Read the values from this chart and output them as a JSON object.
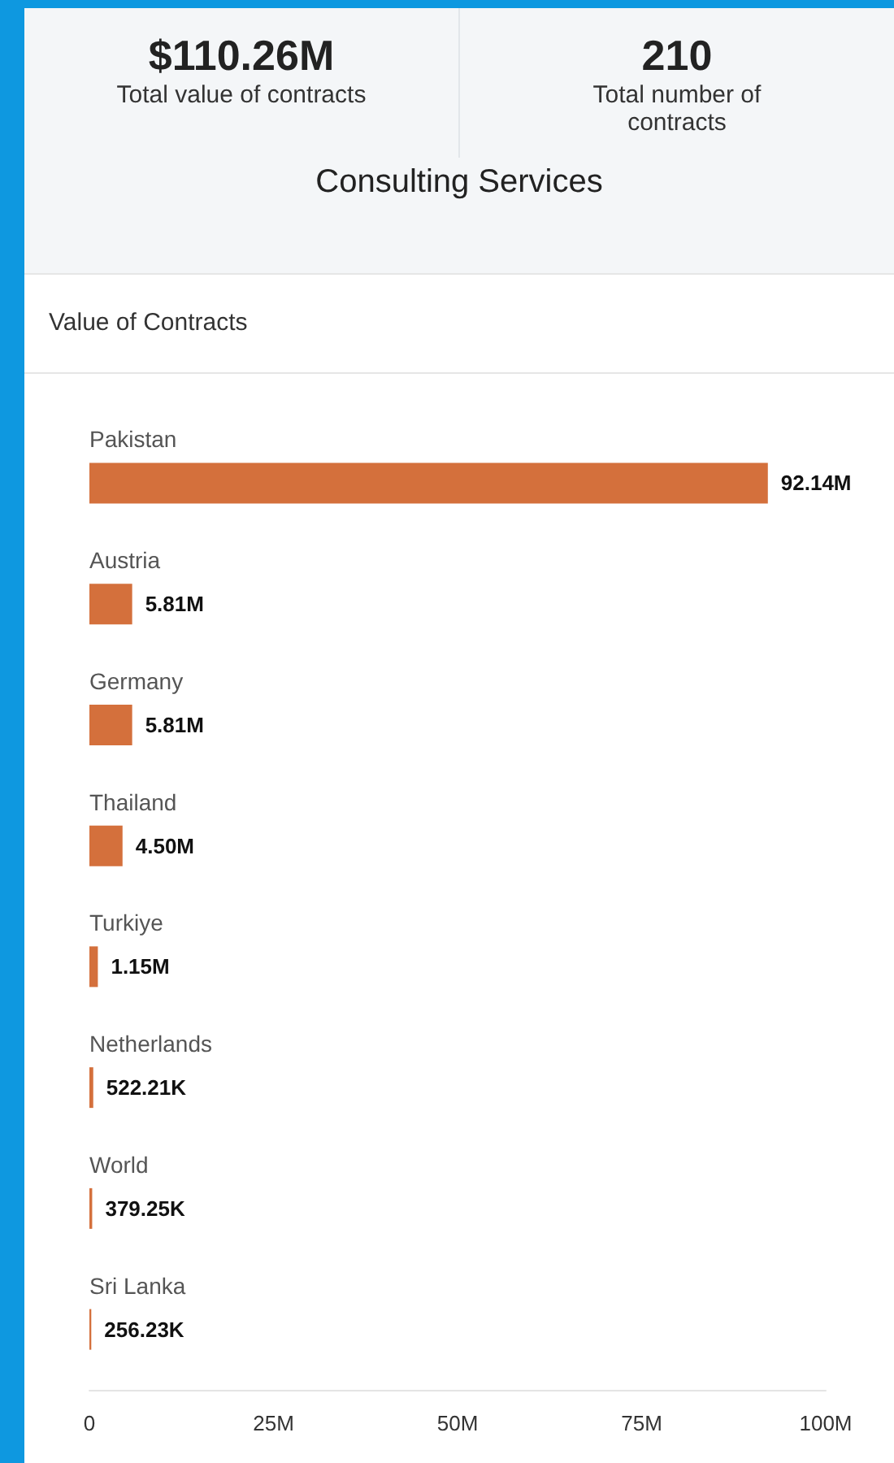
{
  "chart_data": {
    "type": "bar",
    "orientation": "horizontal",
    "title": "Consulting Services",
    "subtitle": "Value of Contracts",
    "annotations": [
      "$110.26M",
      "Total value of contracts",
      "210",
      "Total number of contracts"
    ],
    "categories": [
      "Pakistan",
      "Austria",
      "Germany",
      "Thailand",
      "Turkiye",
      "Netherlands",
      "World",
      "Sri Lanka"
    ],
    "values": [
      92140000,
      5810000,
      5810000,
      4500000,
      1150000,
      522210,
      379250,
      256230
    ],
    "value_labels": [
      "92.14M",
      "5.81M",
      "5.81M",
      "4.50M",
      "1.15M",
      "522.21K",
      "379.25K",
      "256.23K"
    ],
    "color": "#d4703c",
    "xlim": [
      0,
      100000000
    ],
    "xticks": [
      0,
      {
        "value": 25000000,
        "label": "25M"
      },
      {
        "value": 50000000,
        "label": "50M"
      },
      {
        "value": 75000000,
        "label": "75M"
      },
      {
        "value": 100000000,
        "label": "100M"
      }
    ],
    "grid": false
  }
}
